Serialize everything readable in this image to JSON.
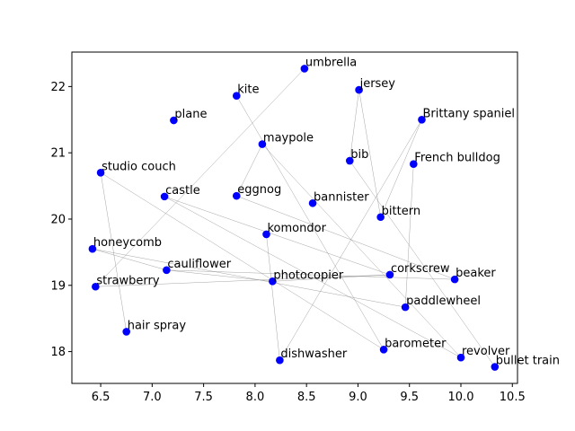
{
  "chart_data": {
    "type": "scatter",
    "title": "",
    "xlabel": "",
    "ylabel": "",
    "xlim": [
      6.22,
      10.55
    ],
    "ylim": [
      17.52,
      22.52
    ],
    "x_ticks": [
      6.5,
      7.0,
      7.5,
      8.0,
      8.5,
      9.0,
      9.5,
      10.0,
      10.5
    ],
    "x_tick_labels": [
      "6.5",
      "7.0",
      "7.5",
      "8.0",
      "8.5",
      "9.0",
      "9.5",
      "10.0",
      "10.5"
    ],
    "y_ticks": [
      18,
      19,
      20,
      21,
      22
    ],
    "y_tick_labels": [
      "18",
      "19",
      "20",
      "21",
      "22"
    ],
    "grid": false,
    "point_color": "#0000ff",
    "edge_color": "#7f7f7f",
    "points": [
      {
        "label": "umbrella",
        "x": 8.48,
        "y": 22.27
      },
      {
        "label": "jersey",
        "x": 9.01,
        "y": 21.95
      },
      {
        "label": "kite",
        "x": 7.82,
        "y": 21.86
      },
      {
        "label": "plane",
        "x": 7.21,
        "y": 21.49
      },
      {
        "label": "Brittany spaniel",
        "x": 9.62,
        "y": 21.5
      },
      {
        "label": "maypole",
        "x": 8.07,
        "y": 21.13
      },
      {
        "label": "bib",
        "x": 8.92,
        "y": 20.88
      },
      {
        "label": "French bulldog",
        "x": 9.54,
        "y": 20.83
      },
      {
        "label": "studio couch",
        "x": 6.5,
        "y": 20.7
      },
      {
        "label": "castle",
        "x": 7.12,
        "y": 20.34
      },
      {
        "label": "eggnog",
        "x": 7.82,
        "y": 20.35
      },
      {
        "label": "bannister",
        "x": 8.56,
        "y": 20.24
      },
      {
        "label": "bittern",
        "x": 9.22,
        "y": 20.03
      },
      {
        "label": "komondor",
        "x": 8.11,
        "y": 19.77
      },
      {
        "label": "honeycomb",
        "x": 6.42,
        "y": 19.55
      },
      {
        "label": "cauliflower",
        "x": 7.14,
        "y": 19.23
      },
      {
        "label": "corkscrew",
        "x": 9.31,
        "y": 19.16
      },
      {
        "label": "photocopier",
        "x": 8.17,
        "y": 19.06
      },
      {
        "label": "beaker",
        "x": 9.94,
        "y": 19.09
      },
      {
        "label": "strawberry",
        "x": 6.45,
        "y": 18.98
      },
      {
        "label": "paddlewheel",
        "x": 9.46,
        "y": 18.67
      },
      {
        "label": "hair spray",
        "x": 6.75,
        "y": 18.3
      },
      {
        "label": "barometer",
        "x": 9.25,
        "y": 18.03
      },
      {
        "label": "dishwasher",
        "x": 8.24,
        "y": 17.87
      },
      {
        "label": "revolver",
        "x": 10.0,
        "y": 17.91
      },
      {
        "label": "bullet train",
        "x": 10.33,
        "y": 17.77
      }
    ],
    "edges": [
      [
        "umbrella",
        "strawberry"
      ],
      [
        "jersey",
        "bib"
      ],
      [
        "jersey",
        "bittern"
      ],
      [
        "kite",
        "barometer"
      ],
      [
        "Brittany spaniel",
        "bittern"
      ],
      [
        "Brittany spaniel",
        "dishwasher"
      ],
      [
        "French bulldog",
        "paddlewheel"
      ],
      [
        "maypole",
        "eggnog"
      ],
      [
        "maypole",
        "revolver"
      ],
      [
        "bib",
        "bullet train"
      ],
      [
        "studio couch",
        "hair spray"
      ],
      [
        "studio couch",
        "barometer"
      ],
      [
        "castle",
        "corkscrew"
      ],
      [
        "castle",
        "revolver"
      ],
      [
        "eggnog",
        "beaker"
      ],
      [
        "komondor",
        "dishwasher"
      ],
      [
        "honeycomb",
        "cauliflower"
      ],
      [
        "honeycomb",
        "paddlewheel"
      ],
      [
        "cauliflower",
        "photocopier"
      ],
      [
        "cauliflower",
        "beaker"
      ],
      [
        "photocopier",
        "corkscrew"
      ],
      [
        "strawberry",
        "corkscrew"
      ]
    ]
  }
}
